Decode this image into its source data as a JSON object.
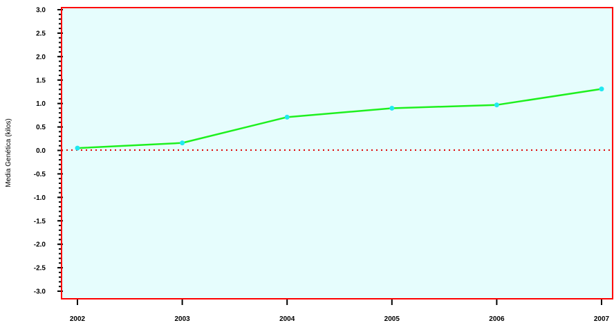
{
  "chart_data": {
    "type": "line",
    "title": "",
    "xlabel": "",
    "ylabel": "Media Genética (kilos)",
    "x": [
      "2002",
      "2003",
      "2004",
      "2005",
      "2006",
      "2007"
    ],
    "series": [
      {
        "values": [
          0.05,
          0.16,
          0.71,
          0.9,
          0.97,
          1.31
        ]
      }
    ],
    "ylim": [
      -3.0,
      3.0
    ],
    "yticks": [
      "3.0",
      "2.5",
      "2.0",
      "1.5",
      "1.0",
      "0.5",
      "0.0",
      "-0.5",
      "-1.0",
      "-1.5",
      "-2.0",
      "-2.5",
      "-3.0"
    ],
    "reference_line": 0,
    "grid": false,
    "legend": "none",
    "colors": {
      "plot_background": "#e6fdfd",
      "frame": "#ff0000",
      "line": "#1ef01e",
      "markers": "#21e8f0",
      "zero_line": "#e00000",
      "axis_ticks": "#000000"
    }
  }
}
